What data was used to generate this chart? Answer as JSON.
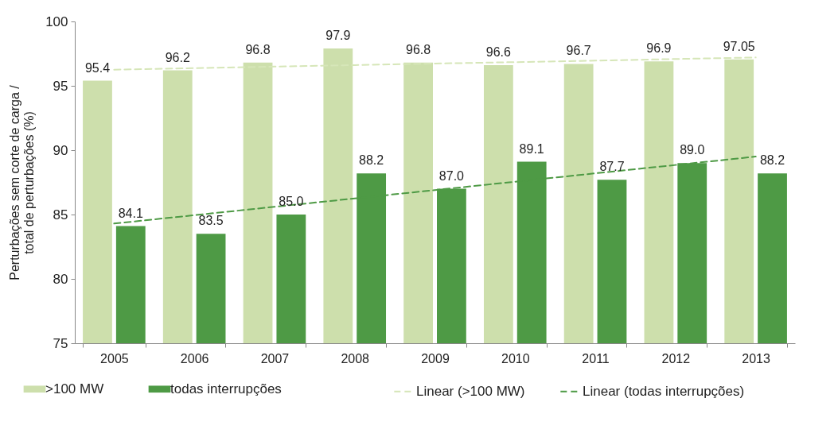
{
  "chart_data": {
    "type": "bar",
    "ylabel": "Perturbações sem corte de carga / total de perturbações (%)",
    "categories": [
      "2005",
      "2006",
      "2007",
      "2008",
      "2009",
      "2010",
      "2011",
      "2012",
      "2013"
    ],
    "series": [
      {
        "name": ">100 MW",
        "color": "#cddfac",
        "values": [
          95.4,
          96.2,
          96.8,
          97.9,
          96.8,
          96.6,
          96.7,
          96.9,
          97.05
        ],
        "value_labels": [
          "95.4",
          "96.2",
          "96.8",
          "97.9",
          "96.8",
          "96.6",
          "96.7",
          "96.9",
          "97.05"
        ]
      },
      {
        "name": "todas interrupções",
        "color": "#4e9a45",
        "values": [
          84.1,
          83.5,
          85.0,
          88.2,
          87.0,
          89.1,
          87.7,
          89.0,
          88.2
        ],
        "value_labels": [
          "84.1",
          "83.5",
          "85.0",
          "88.2",
          "87.0",
          "89.1",
          "87.7",
          "89.0",
          "88.2"
        ]
      },
      {
        "name": "Linear (>100 MW)",
        "type": "line",
        "color": "#d6e6b8",
        "line_style": "dashed",
        "values": [
          96.25,
          96.37,
          96.49,
          96.61,
          96.73,
          96.84,
          96.96,
          97.08,
          97.2
        ]
      },
      {
        "name": "Linear (todas interrupções)",
        "type": "line",
        "color": "#4e9a45",
        "line_style": "dashed",
        "values": [
          84.3,
          84.95,
          85.6,
          86.25,
          86.9,
          87.55,
          88.2,
          88.85,
          89.5
        ]
      }
    ],
    "ylim": [
      75,
      100
    ],
    "yticks": [
      75,
      80,
      85,
      90,
      95,
      100
    ],
    "grid": false,
    "legend": "bottom"
  }
}
